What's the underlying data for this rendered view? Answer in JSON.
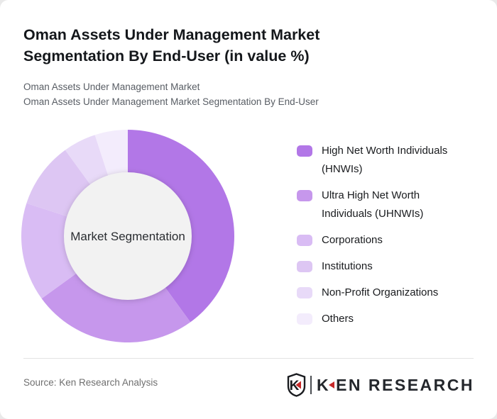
{
  "page": {
    "background_color": "#e9e9e9",
    "card_background": "#ffffff"
  },
  "header": {
    "title": "Oman Assets Under Management Market Segmentation By End-User (in value %)",
    "title_lines": [
      "Oman Assets Under Management Market",
      "Segmentation By End-User (in value %)"
    ],
    "subtitle_line1": "Oman Assets Under Management Market",
    "subtitle_line2": "Oman Assets Under Management Market Segmentation By End-User"
  },
  "chart_data": {
    "type": "pie",
    "donut": true,
    "title": "Oman Assets Under Management Market Segmentation By End-User (in value %)",
    "center_label": "Market Segmentation",
    "start_angle_deg": 0,
    "direction": "clockwise",
    "legend_position": "right",
    "hole_color": "#f2f2f2",
    "hole_radius_ratio": 0.6,
    "categories": [
      "High Net Worth Individuals (HNWIs)",
      "Ultra High Net Worth Individuals (UHNWIs)",
      "Corporations",
      "Institutions",
      "Non-Profit Organizations",
      "Others"
    ],
    "values": [
      40,
      25,
      15,
      10,
      5,
      5
    ],
    "colors": [
      "#b277e7",
      "#c697ec",
      "#d9bcf4",
      "#ddc6f3",
      "#e8daf8",
      "#f3ecfc"
    ]
  },
  "footer": {
    "source": "Source: Ken Research Analysis",
    "logo": {
      "mark_letter": "K",
      "brand_k": "K",
      "brand_rest": "EN RESEARCH",
      "accent_color": "#c62828",
      "ink_color": "#24272c"
    }
  }
}
